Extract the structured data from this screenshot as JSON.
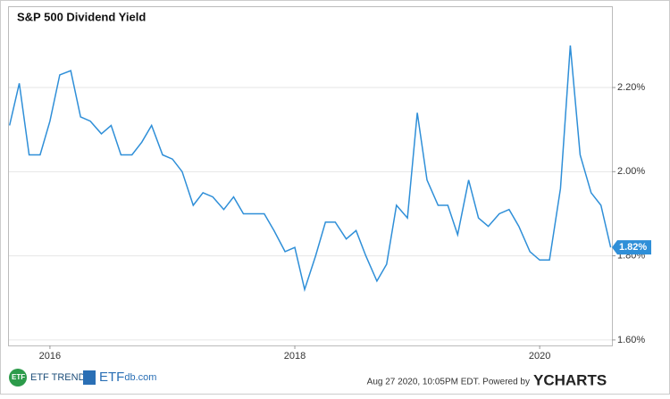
{
  "chart_data": {
    "type": "line",
    "title": "S&P 500 Dividend Yield",
    "x": [
      2015.67,
      2015.75,
      2015.83,
      2015.92,
      2016.0,
      2016.08,
      2016.17,
      2016.25,
      2016.33,
      2016.42,
      2016.5,
      2016.58,
      2016.67,
      2016.75,
      2016.83,
      2016.92,
      2017.0,
      2017.08,
      2017.17,
      2017.25,
      2017.33,
      2017.42,
      2017.5,
      2017.58,
      2017.67,
      2017.75,
      2017.83,
      2017.92,
      2018.0,
      2018.08,
      2018.17,
      2018.25,
      2018.33,
      2018.42,
      2018.5,
      2018.58,
      2018.67,
      2018.75,
      2018.83,
      2018.92,
      2019.0,
      2019.08,
      2019.17,
      2019.25,
      2019.33,
      2019.42,
      2019.5,
      2019.58,
      2019.67,
      2019.75,
      2019.83,
      2019.92,
      2020.0,
      2020.08,
      2020.17,
      2020.25,
      2020.33,
      2020.42,
      2020.5,
      2020.58
    ],
    "series": [
      {
        "name": "S&P 500 Dividend Yield",
        "color": "#2f8fd8",
        "values": [
          2.11,
          2.21,
          2.04,
          2.04,
          2.12,
          2.23,
          2.24,
          2.13,
          2.12,
          2.09,
          2.11,
          2.04,
          2.04,
          2.07,
          2.11,
          2.04,
          2.03,
          2.0,
          1.92,
          1.95,
          1.94,
          1.91,
          1.94,
          1.9,
          1.9,
          1.9,
          1.86,
          1.81,
          1.82,
          1.72,
          1.8,
          1.88,
          1.88,
          1.84,
          1.86,
          1.8,
          1.74,
          1.78,
          1.92,
          1.89,
          2.14,
          1.98,
          1.92,
          1.92,
          1.85,
          1.98,
          1.89,
          1.87,
          1.9,
          1.91,
          1.87,
          1.81,
          1.79,
          1.79,
          1.96,
          2.3,
          2.04,
          1.95,
          1.92,
          1.82
        ]
      }
    ],
    "end_label": "1.82%",
    "xlim": [
      2015.665,
      2020.59
    ],
    "xticks": [
      2016,
      2018,
      2020
    ],
    "ylim": [
      1.587,
      2.391
    ],
    "yticks": [
      {
        "value": 1.6,
        "label": "1.60%"
      },
      {
        "value": 1.8,
        "label": "1.80%"
      },
      {
        "value": 2.0,
        "label": "2.00%"
      },
      {
        "value": 2.2,
        "label": "2.20%"
      }
    ],
    "grid": true
  },
  "footer": {
    "logo1": "ETF TRENDS",
    "logo2_a": "ETF",
    "logo2_b": "db.com",
    "timestamp": "Aug 27 2020, 10:05PM EDT.  Powered by",
    "brand": "YCHARTS"
  }
}
